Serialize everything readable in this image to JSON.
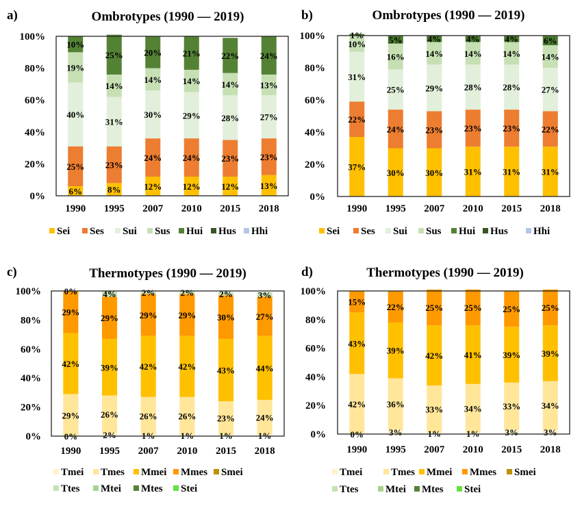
{
  "chart_data": [
    {
      "type": "bar",
      "stacked": true,
      "percent": true,
      "panel_label": "a)",
      "title": "Ombrotypes (1990 — 2019)",
      "xlabel": "",
      "ylabel": "",
      "ylim": [
        0,
        100
      ],
      "yticks": [
        "0%",
        "20%",
        "40%",
        "60%",
        "80%",
        "100%"
      ],
      "categories": [
        "1990",
        "1995",
        "2007",
        "2010",
        "2015",
        "2018"
      ],
      "legend_position": "bottom",
      "legend": [
        {
          "name": "Sei",
          "color": "#FFC000"
        },
        {
          "name": "Ses",
          "color": "#ED7D31"
        },
        {
          "name": "Sui",
          "color": "#E2EFDA"
        },
        {
          "name": "Sus",
          "color": "#C6E0B4"
        },
        {
          "name": "Hui",
          "color": "#548235"
        },
        {
          "name": "Hus",
          "color": "#375623"
        },
        {
          "name": "Hhi",
          "color": "#B4C6E7"
        }
      ],
      "series": [
        {
          "name": "Sei",
          "color": "#FFC000",
          "values": [
            6,
            8,
            12,
            12,
            12,
            13
          ]
        },
        {
          "name": "Ses",
          "color": "#ED7D31",
          "values": [
            25,
            23,
            24,
            24,
            23,
            23
          ]
        },
        {
          "name": "Sui",
          "color": "#E2EFDA",
          "values": [
            40,
            31,
            30,
            29,
            28,
            27
          ]
        },
        {
          "name": "Sus",
          "color": "#C6E0B4",
          "values": [
            19,
            14,
            14,
            14,
            14,
            13
          ]
        },
        {
          "name": "Hui",
          "color": "#548235",
          "values": [
            10,
            25,
            20,
            21,
            22,
            24
          ]
        }
      ]
    },
    {
      "type": "bar",
      "stacked": true,
      "percent": true,
      "panel_label": "b)",
      "title": "Ombrotypes (1990 — 2019)",
      "xlabel": "",
      "ylabel": "",
      "ylim": [
        0,
        100
      ],
      "yticks": [
        "0%",
        "20%",
        "40%",
        "60%",
        "80%",
        "100%"
      ],
      "categories": [
        "1990",
        "1995",
        "2007",
        "2010",
        "2015",
        "2018"
      ],
      "legend_position": "bottom",
      "legend": [
        {
          "name": "Sei",
          "color": "#FFC000"
        },
        {
          "name": "Ses",
          "color": "#ED7D31"
        },
        {
          "name": "Sui",
          "color": "#E2EFDA"
        },
        {
          "name": "Sus",
          "color": "#C6E0B4"
        },
        {
          "name": "Hui",
          "color": "#548235"
        },
        {
          "name": "Hus",
          "color": "#375623"
        },
        {
          "name": "Hhi",
          "color": "#B4C6E7"
        }
      ],
      "series": [
        {
          "name": "Sei",
          "color": "#FFC000",
          "values": [
            37,
            30,
            30,
            31,
            31,
            31
          ]
        },
        {
          "name": "Ses",
          "color": "#ED7D31",
          "values": [
            22,
            24,
            23,
            23,
            23,
            22
          ]
        },
        {
          "name": "Sui",
          "color": "#E2EFDA",
          "values": [
            31,
            25,
            29,
            28,
            28,
            27
          ]
        },
        {
          "name": "Sus",
          "color": "#C6E0B4",
          "values": [
            10,
            16,
            14,
            14,
            14,
            14
          ]
        },
        {
          "name": "Hui",
          "color": "#4A7A2E",
          "values": [
            1,
            5,
            4,
            4,
            4,
            6
          ]
        }
      ]
    },
    {
      "type": "bar",
      "stacked": true,
      "percent": true,
      "panel_label": "c)",
      "title": "Thermotypes (1990 — 2019)",
      "xlabel": "",
      "ylabel": "",
      "ylim": [
        0,
        100
      ],
      "yticks": [
        "0%",
        "20%",
        "40%",
        "60%",
        "80%",
        "100%"
      ],
      "categories": [
        "1990",
        "1995",
        "2007",
        "2010",
        "2015",
        "2018"
      ],
      "legend_position": "bottom",
      "legend": [
        {
          "name": "Tmei",
          "color": "#FFF2CC"
        },
        {
          "name": "Tmes",
          "color": "#FFE699"
        },
        {
          "name": "Mmei",
          "color": "#FFC000"
        },
        {
          "name": "Mmes",
          "color": "#FF9900"
        },
        {
          "name": "Smei",
          "color": "#BF9000"
        },
        {
          "name": "Ttes",
          "color": "#C6E0B4"
        },
        {
          "name": "Mtei",
          "color": "#A9D08E"
        },
        {
          "name": "Mtes",
          "color": "#548235"
        },
        {
          "name": "Stei",
          "color": "#66E040"
        }
      ],
      "series": [
        {
          "name": "Tmei",
          "color": "#FFF2CC",
          "values": [
            0,
            2,
            1,
            1,
            1,
            1
          ]
        },
        {
          "name": "Tmes",
          "color": "#FFE699",
          "values": [
            29,
            26,
            26,
            26,
            23,
            24
          ]
        },
        {
          "name": "Mmei",
          "color": "#FFC000",
          "values": [
            42,
            39,
            42,
            42,
            43,
            44
          ]
        },
        {
          "name": "Mmes",
          "color": "#FF9900",
          "values": [
            29,
            29,
            29,
            29,
            30,
            27
          ]
        },
        {
          "name": "Ttes",
          "color": "#C6E0B4",
          "values": [
            0,
            4,
            2,
            2,
            2,
            3
          ]
        }
      ]
    },
    {
      "type": "bar",
      "stacked": true,
      "percent": true,
      "panel_label": "d)",
      "title": "Thermotypes (1990 — 2019)",
      "xlabel": "",
      "ylabel": "",
      "ylim": [
        0,
        100
      ],
      "yticks": [
        "0%",
        "20%",
        "40%",
        "60%",
        "80%",
        "100%"
      ],
      "categories": [
        "1990",
        "1995",
        "2007",
        "2010",
        "2015",
        "2018"
      ],
      "legend_position": "bottom",
      "legend": [
        {
          "name": "Tmei",
          "color": "#FFF2CC"
        },
        {
          "name": "Tmes",
          "color": "#FFE699"
        },
        {
          "name": "Mmei",
          "color": "#FFC000"
        },
        {
          "name": "Mmes",
          "color": "#FF9900"
        },
        {
          "name": "Smei",
          "color": "#BF9000"
        },
        {
          "name": "Ttes",
          "color": "#C6E0B4"
        },
        {
          "name": "Mtei",
          "color": "#A9D08E"
        },
        {
          "name": "Mtes",
          "color": "#548235"
        },
        {
          "name": "Stei",
          "color": "#66E040"
        }
      ],
      "series": [
        {
          "name": "Tmei",
          "color": "#FFF2CC",
          "values": [
            0,
            3,
            1,
            1,
            3,
            3
          ]
        },
        {
          "name": "Tmes",
          "color": "#FFE699",
          "values": [
            42,
            36,
            33,
            34,
            33,
            34
          ]
        },
        {
          "name": "Mmei",
          "color": "#FFC000",
          "values": [
            43,
            39,
            42,
            41,
            39,
            39
          ]
        },
        {
          "name": "Mmes",
          "color": "#FF9900",
          "values": [
            15,
            22,
            25,
            25,
            25,
            25
          ]
        }
      ]
    }
  ]
}
